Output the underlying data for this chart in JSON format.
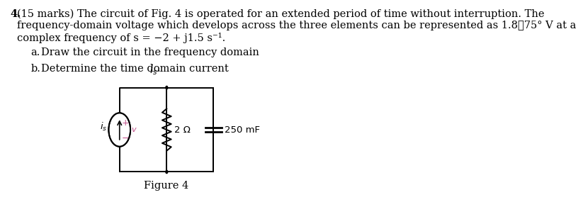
{
  "line1_num": "4.",
  "line1_rest": " (15 marks) The circuit of Fig. 4 is operated for an extended period of time without interruption. The",
  "line2": "   frequency-domain voltage which develops across the three elements can be represented as 1.8❒75° V at a",
  "line3": "   complex frequency of s = −2 + j1.5 s⁻¹.",
  "item_a_label": "a.",
  "item_a_text": "Draw the circuit in the frequency domain",
  "item_b_label": "b.",
  "item_b_text": "Determine the time domain current ",
  "item_b_sub": "i",
  "item_b_subsub": "s",
  "item_b_dot": ".",
  "figure_label": "Figure 4",
  "resistor_label": "2 Ω",
  "capacitor_label": "250 mF",
  "plus_label": "+",
  "minus_label": "−",
  "background": "#ffffff",
  "text_color": "#000000",
  "circuit_color": "#000000",
  "plus_minus_color": "#c0508a",
  "font_family": "DejaVu Serif",
  "main_fontsize": 10.5,
  "circuit_fontsize": 9.5
}
